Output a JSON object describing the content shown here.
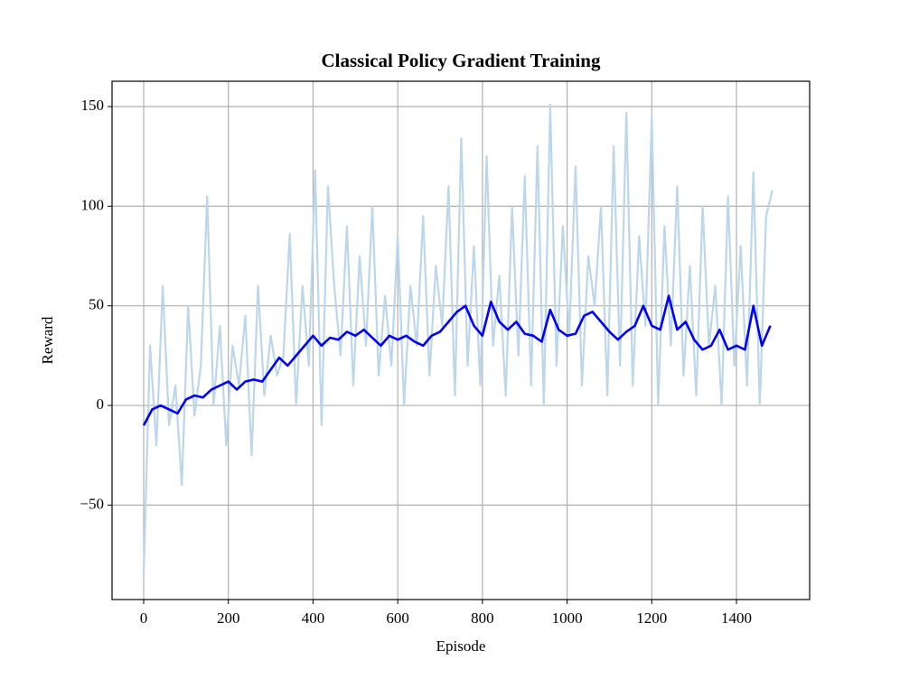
{
  "chart_data": {
    "type": "line",
    "title": "Classical Policy Gradient Training",
    "xlabel": "Episode",
    "ylabel": "Reward",
    "xlim": [
      -74.7,
      1572.8
    ],
    "ylim": [
      -97.4,
      162.7
    ],
    "xticks": [
      0,
      200,
      400,
      600,
      800,
      1000,
      1200,
      1400
    ],
    "yticks": [
      {
        "value": -50,
        "label": "−50"
      },
      0,
      50,
      100,
      150
    ],
    "grid": true,
    "series": [
      {
        "color": "#bcd6ea",
        "x": [
          0,
          15,
          30,
          45,
          60,
          75,
          90,
          105,
          120,
          135,
          150,
          165,
          180,
          195,
          210,
          225,
          240,
          255,
          270,
          285,
          300,
          315,
          330,
          345,
          360,
          375,
          390,
          405,
          420,
          435,
          450,
          465,
          480,
          495,
          510,
          525,
          540,
          555,
          570,
          585,
          600,
          615,
          630,
          645,
          660,
          675,
          690,
          705,
          720,
          735,
          750,
          765,
          780,
          795,
          810,
          825,
          840,
          855,
          870,
          885,
          900,
          915,
          930,
          945,
          960,
          975,
          990,
          1005,
          1020,
          1035,
          1050,
          1065,
          1080,
          1095,
          1110,
          1125,
          1140,
          1155,
          1170,
          1185,
          1200,
          1215,
          1230,
          1245,
          1260,
          1275,
          1290,
          1305,
          1320,
          1335,
          1350,
          1365,
          1380,
          1395,
          1410,
          1425,
          1440,
          1455,
          1470,
          1485
        ],
        "values": [
          -85,
          30,
          -20,
          60,
          -10,
          10,
          -40,
          50,
          -5,
          20,
          105,
          0,
          40,
          -20,
          30,
          10,
          45,
          -25,
          60,
          5,
          35,
          15,
          25,
          86,
          0,
          60,
          20,
          118,
          -10,
          110,
          60,
          25,
          90,
          10,
          75,
          30,
          100,
          15,
          55,
          20,
          85,
          0,
          60,
          30,
          95,
          15,
          70,
          40,
          110,
          5,
          134,
          20,
          80,
          10,
          125,
          30,
          65,
          5,
          100,
          25,
          115,
          10,
          130,
          0,
          151,
          20,
          90,
          35,
          120,
          10,
          75,
          50,
          100,
          5,
          130,
          20,
          147,
          10,
          85,
          40,
          145,
          0,
          90,
          30,
          110,
          15,
          70,
          5,
          100,
          30,
          60,
          0,
          105,
          20,
          80,
          10,
          117,
          0,
          95,
          108
        ]
      },
      {
        "color": "#0000ff",
        "x": [
          0,
          20,
          40,
          60,
          80,
          100,
          120,
          140,
          160,
          180,
          200,
          220,
          240,
          260,
          280,
          300,
          320,
          340,
          360,
          380,
          400,
          420,
          440,
          460,
          480,
          500,
          520,
          540,
          560,
          580,
          600,
          620,
          640,
          660,
          680,
          700,
          720,
          740,
          760,
          780,
          800,
          820,
          840,
          860,
          880,
          900,
          920,
          940,
          960,
          980,
          1000,
          1020,
          1040,
          1060,
          1080,
          1100,
          1120,
          1140,
          1160,
          1180,
          1200,
          1220,
          1240,
          1260,
          1280,
          1300,
          1320,
          1340,
          1360,
          1380,
          1400,
          1420,
          1440,
          1460,
          1480
        ],
        "values": [
          -10,
          -2,
          0,
          -2,
          -4,
          3,
          5,
          4,
          8,
          10,
          12,
          8,
          12,
          13,
          12,
          18,
          24,
          20,
          25,
          30,
          35,
          30,
          34,
          33,
          37,
          35,
          38,
          34,
          30,
          35,
          33,
          35,
          32,
          30,
          35,
          37,
          42,
          47,
          50,
          40,
          35,
          52,
          42,
          38,
          42,
          36,
          35,
          32,
          48,
          38,
          35,
          36,
          45,
          47,
          42,
          37,
          33,
          37,
          40,
          50,
          40,
          38,
          55,
          38,
          42,
          33,
          28,
          30,
          38,
          28,
          30,
          28,
          50,
          30,
          40
        ]
      }
    ]
  }
}
